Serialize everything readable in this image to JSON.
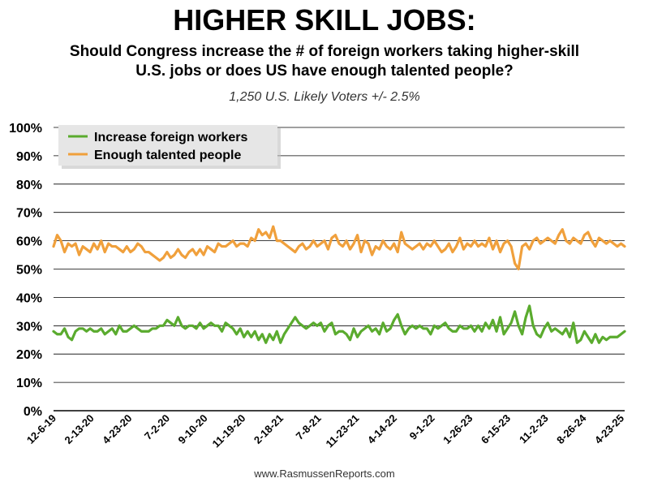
{
  "title": "HIGHER SKILL JOBS:",
  "subtitle_line1": "Should Congress increase the # of foreign workers taking higher-skill",
  "subtitle_line2": "U.S. jobs or does US have enough talented people?",
  "sample_note": "1,250 U.S. Likely Voters +/- 2.5%",
  "source": "www.RasmussenReports.com",
  "colors": {
    "green": "#5aab2e",
    "orange": "#f0a03c",
    "grid": "#000000"
  },
  "chart_data": {
    "type": "line",
    "title": "HIGHER SKILL JOBS:",
    "ylim": [
      0,
      100
    ],
    "y_ticks": [
      "0%",
      "10%",
      "20%",
      "30%",
      "40%",
      "50%",
      "60%",
      "70%",
      "80%",
      "90%",
      "100%"
    ],
    "x_tick_labels": [
      "12-6-19",
      "2-13-20",
      "4-23-20",
      "7-2-20",
      "9-10-20",
      "11-19-20",
      "2-18-21",
      "7-8-21",
      "11-23-21",
      "4-14-22",
      "9-1-22",
      "1-26-23",
      "6-15-23",
      "11-2-23",
      "8-26-24",
      "4-23-25"
    ],
    "grid": "horizontal",
    "legend_position": "top-left",
    "series": [
      {
        "name": "Increase foreign workers",
        "color": "#5aab2e",
        "values": [
          28,
          27,
          27,
          29,
          26,
          25,
          28,
          29,
          29,
          28,
          29,
          28,
          28,
          29,
          27,
          28,
          29,
          27,
          30,
          28,
          28,
          29,
          30,
          29,
          28,
          28,
          28,
          29,
          29,
          30,
          30,
          32,
          31,
          30,
          33,
          30,
          29,
          30,
          30,
          29,
          31,
          29,
          30,
          31,
          30,
          30,
          28,
          31,
          30,
          29,
          27,
          29,
          26,
          28,
          26,
          28,
          25,
          27,
          24,
          27,
          25,
          28,
          24,
          27,
          29,
          31,
          33,
          31,
          30,
          29,
          30,
          31,
          30,
          31,
          28,
          30,
          31,
          27,
          28,
          28,
          27,
          25,
          29,
          26,
          28,
          29,
          30,
          28,
          29,
          27,
          31,
          28,
          29,
          32,
          34,
          30,
          27,
          29,
          30,
          29,
          30,
          29,
          29,
          27,
          30,
          29,
          30,
          31,
          29,
          28,
          28,
          30,
          29,
          29,
          30,
          28,
          30,
          28,
          31,
          29,
          32,
          28,
          33,
          27,
          29,
          31,
          35,
          30,
          27,
          33,
          37,
          30,
          27,
          26,
          29,
          31,
          28,
          29,
          28,
          27,
          29,
          26,
          31,
          24,
          25,
          28,
          26,
          24,
          27,
          24,
          26,
          25,
          26,
          26,
          26,
          27,
          28
        ]
      },
      {
        "name": "Enough talented people",
        "color": "#f0a03c",
        "values": [
          58,
          62,
          60,
          56,
          59,
          58,
          59,
          55,
          58,
          57,
          56,
          59,
          57,
          60,
          56,
          59,
          58,
          58,
          57,
          56,
          58,
          56,
          57,
          59,
          58,
          56,
          56,
          55,
          54,
          53,
          54,
          56,
          54,
          55,
          57,
          55,
          54,
          56,
          57,
          55,
          57,
          55,
          58,
          57,
          56,
          59,
          58,
          58,
          59,
          60,
          58,
          59,
          59,
          58,
          61,
          60,
          64,
          62,
          63,
          61,
          65,
          60,
          60,
          59,
          58,
          57,
          56,
          58,
          59,
          57,
          58,
          60,
          58,
          59,
          60,
          57,
          61,
          62,
          59,
          58,
          60,
          57,
          59,
          62,
          56,
          60,
          59,
          55,
          58,
          57,
          60,
          58,
          57,
          59,
          56,
          63,
          59,
          58,
          57,
          58,
          59,
          57,
          59,
          58,
          60,
          58,
          56,
          57,
          59,
          56,
          58,
          61,
          57,
          59,
          58,
          60,
          58,
          59,
          58,
          61,
          57,
          60,
          56,
          59,
          60,
          58,
          52,
          50,
          58,
          59,
          57,
          60,
          61,
          59,
          60,
          61,
          60,
          59,
          62,
          64,
          60,
          59,
          61,
          60,
          59,
          62,
          63,
          60,
          58,
          61,
          60,
          59,
          60,
          59,
          58,
          59,
          58
        ]
      }
    ]
  }
}
